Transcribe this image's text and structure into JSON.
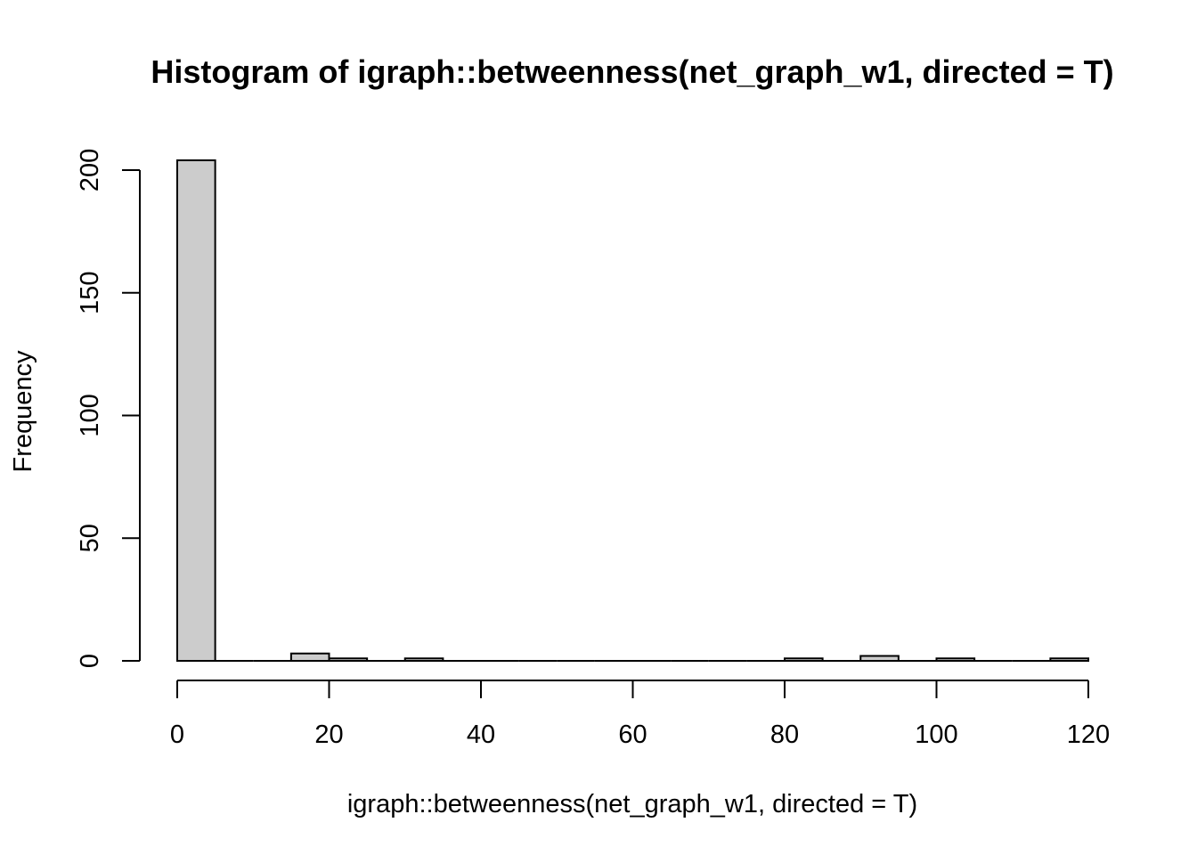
{
  "chart_data": {
    "type": "bar",
    "title": "Histogram of igraph::betweenness(net_graph_w1, directed = T)",
    "xlabel": "igraph::betweenness(net_graph_w1, directed = T)",
    "ylabel": "Frequency",
    "bin_width": 5,
    "bins": [
      {
        "from": 0,
        "to": 5,
        "count": 204
      },
      {
        "from": 5,
        "to": 10,
        "count": 0
      },
      {
        "from": 10,
        "to": 15,
        "count": 0
      },
      {
        "from": 15,
        "to": 20,
        "count": 3
      },
      {
        "from": 20,
        "to": 25,
        "count": 1
      },
      {
        "from": 25,
        "to": 30,
        "count": 0
      },
      {
        "from": 30,
        "to": 35,
        "count": 1
      },
      {
        "from": 35,
        "to": 40,
        "count": 0
      },
      {
        "from": 40,
        "to": 45,
        "count": 0
      },
      {
        "from": 45,
        "to": 50,
        "count": 0
      },
      {
        "from": 50,
        "to": 55,
        "count": 0
      },
      {
        "from": 55,
        "to": 60,
        "count": 0
      },
      {
        "from": 60,
        "to": 65,
        "count": 0
      },
      {
        "from": 65,
        "to": 70,
        "count": 0
      },
      {
        "from": 70,
        "to": 75,
        "count": 0
      },
      {
        "from": 75,
        "to": 80,
        "count": 0
      },
      {
        "from": 80,
        "to": 85,
        "count": 1
      },
      {
        "from": 85,
        "to": 90,
        "count": 0
      },
      {
        "from": 90,
        "to": 95,
        "count": 2
      },
      {
        "from": 95,
        "to": 100,
        "count": 0
      },
      {
        "from": 100,
        "to": 105,
        "count": 1
      },
      {
        "from": 105,
        "to": 110,
        "count": 0
      },
      {
        "from": 110,
        "to": 115,
        "count": 0
      },
      {
        "from": 115,
        "to": 120,
        "count": 1
      }
    ],
    "xlim": [
      0,
      120
    ],
    "ylim": [
      0,
      204
    ],
    "x_ticks": [
      0,
      20,
      40,
      60,
      80,
      100,
      120
    ],
    "x_tick_labels": [
      "0",
      "20",
      "40",
      "60",
      "80",
      "100",
      "120"
    ],
    "y_ticks": [
      0,
      50,
      100,
      150,
      200
    ],
    "y_tick_labels": [
      "0",
      "50",
      "100",
      "150",
      "200"
    ],
    "bar_fill": "#cccccc",
    "bar_stroke": "#000000",
    "grid": false,
    "legend": "none"
  }
}
